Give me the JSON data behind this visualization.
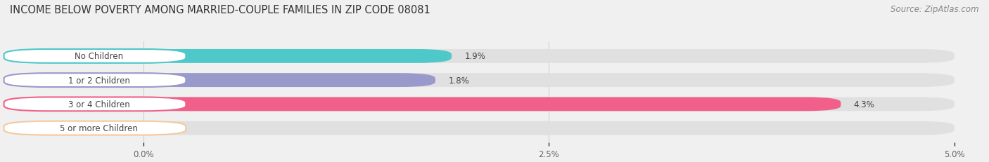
{
  "title": "INCOME BELOW POVERTY AMONG MARRIED-COUPLE FAMILIES IN ZIP CODE 08081",
  "source": "Source: ZipAtlas.com",
  "categories": [
    "No Children",
    "1 or 2 Children",
    "3 or 4 Children",
    "5 or more Children"
  ],
  "values": [
    1.9,
    1.8,
    4.3,
    0.0
  ],
  "bar_colors": [
    "#4EC8C8",
    "#9999CC",
    "#F0608A",
    "#F5C8A0"
  ],
  "xlim": [
    0,
    5.0
  ],
  "xtick_labels": [
    "0.0%",
    "2.5%",
    "5.0%"
  ],
  "xtick_vals": [
    0.0,
    2.5,
    5.0
  ],
  "background_color": "#f0f0f0",
  "bar_background": "#e0e0e0",
  "bar_height": 0.58,
  "title_fontsize": 10.5,
  "source_fontsize": 8.5,
  "label_fontsize": 8.5,
  "tick_fontsize": 8.5,
  "label_bg_color": "#ffffff",
  "label_text_color": "#444444",
  "value_label_color": "#444444"
}
